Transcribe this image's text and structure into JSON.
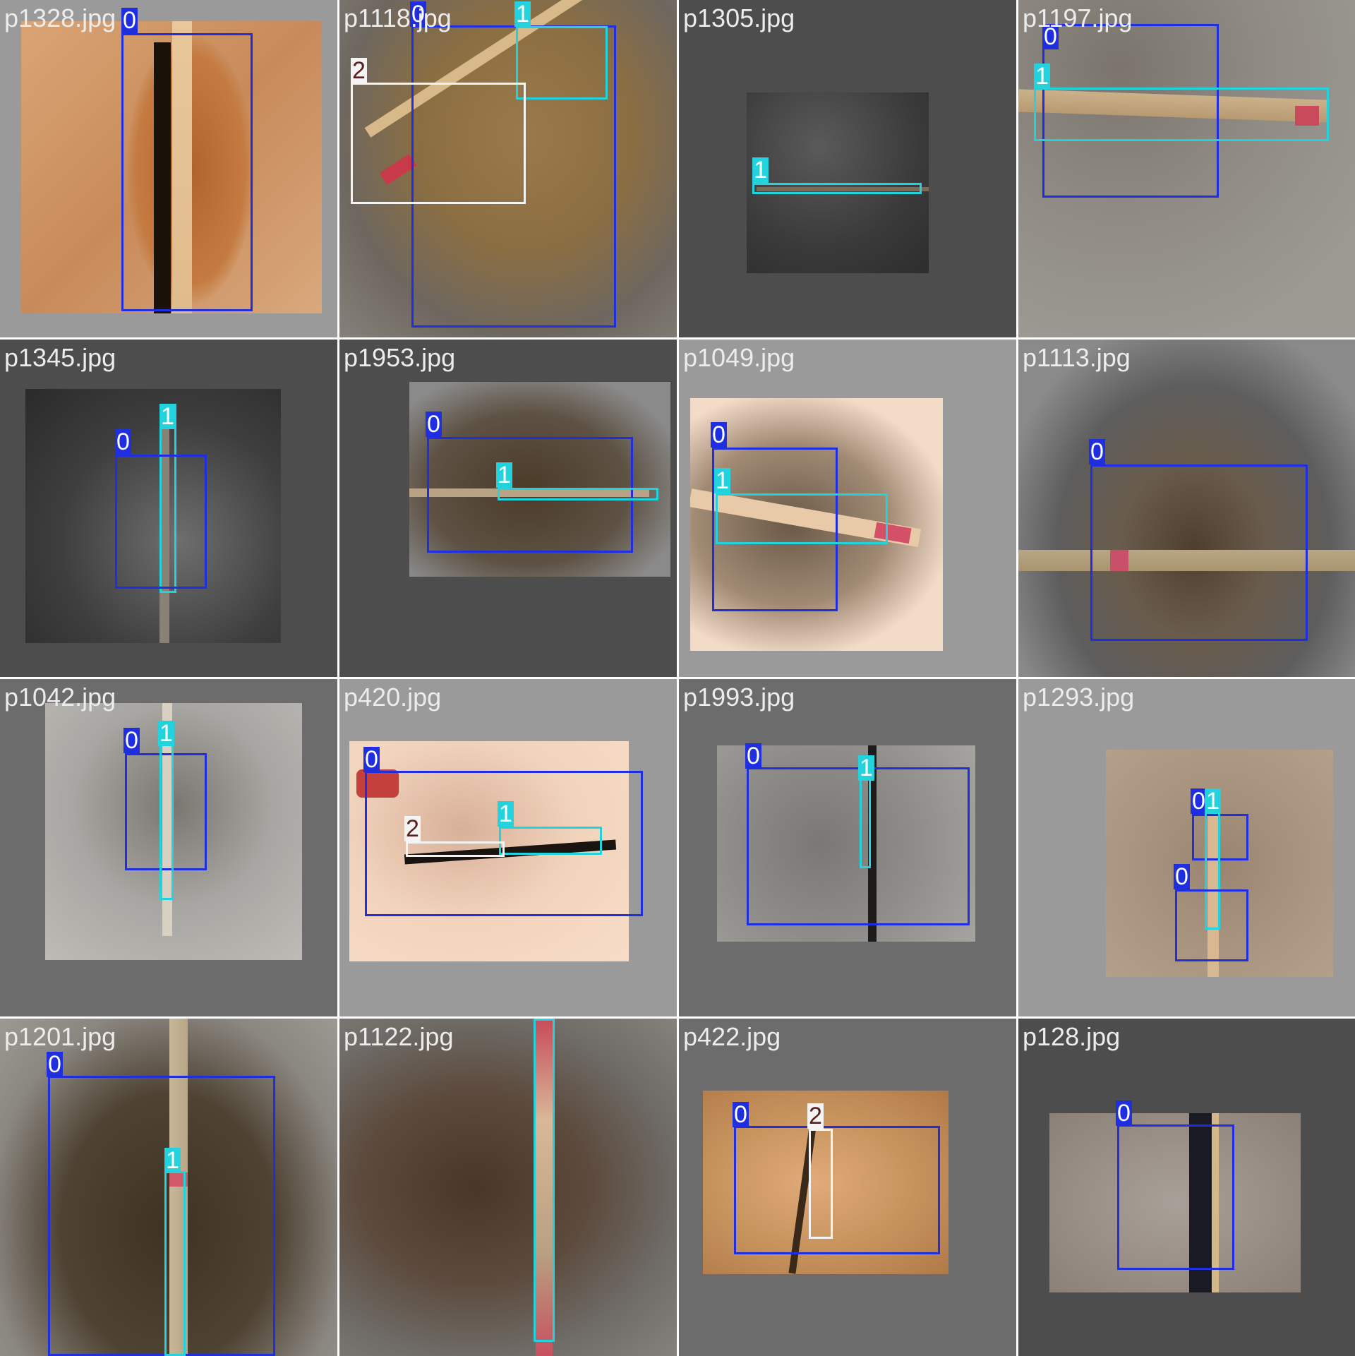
{
  "colors": {
    "class0": "#1f2fe0",
    "class1": "#22d3de",
    "class2": "#f4f4f4",
    "bg_dark": "#4d4d4d",
    "bg_mid": "#6c6c6c",
    "bg_light": "#9a9a9a"
  },
  "tiles": [
    {
      "file": "p1328.jpg",
      "labels": [
        "0"
      ]
    },
    {
      "file": "p1118.jpg",
      "labels": [
        "0",
        "1",
        "2"
      ]
    },
    {
      "file": "p1305.jpg",
      "labels": [
        "1"
      ]
    },
    {
      "file": "p1197.jpg",
      "labels": [
        "0",
        "1"
      ]
    },
    {
      "file": "p1345.jpg",
      "labels": [
        "1",
        "0"
      ]
    },
    {
      "file": "p1953.jpg",
      "labels": [
        "0",
        "1"
      ]
    },
    {
      "file": "p1049.jpg",
      "labels": [
        "0",
        "1"
      ]
    },
    {
      "file": "p1113.jpg",
      "labels": [
        "0"
      ]
    },
    {
      "file": "p1042.jpg",
      "labels": [
        "0",
        "1"
      ]
    },
    {
      "file": "p420.jpg",
      "labels": [
        "0",
        "1",
        "2"
      ]
    },
    {
      "file": "p1993.jpg",
      "labels": [
        "0",
        "1"
      ]
    },
    {
      "file": "p1293.jpg",
      "labels": [
        "0",
        "1",
        "0"
      ]
    },
    {
      "file": "p1201.jpg",
      "labels": [
        "0",
        "1"
      ]
    },
    {
      "file": "p1122.jpg",
      "labels": [
        "1"
      ]
    },
    {
      "file": "p422.jpg",
      "labels": [
        "0",
        "2"
      ]
    },
    {
      "file": "p128.jpg",
      "labels": [
        "0"
      ]
    }
  ]
}
